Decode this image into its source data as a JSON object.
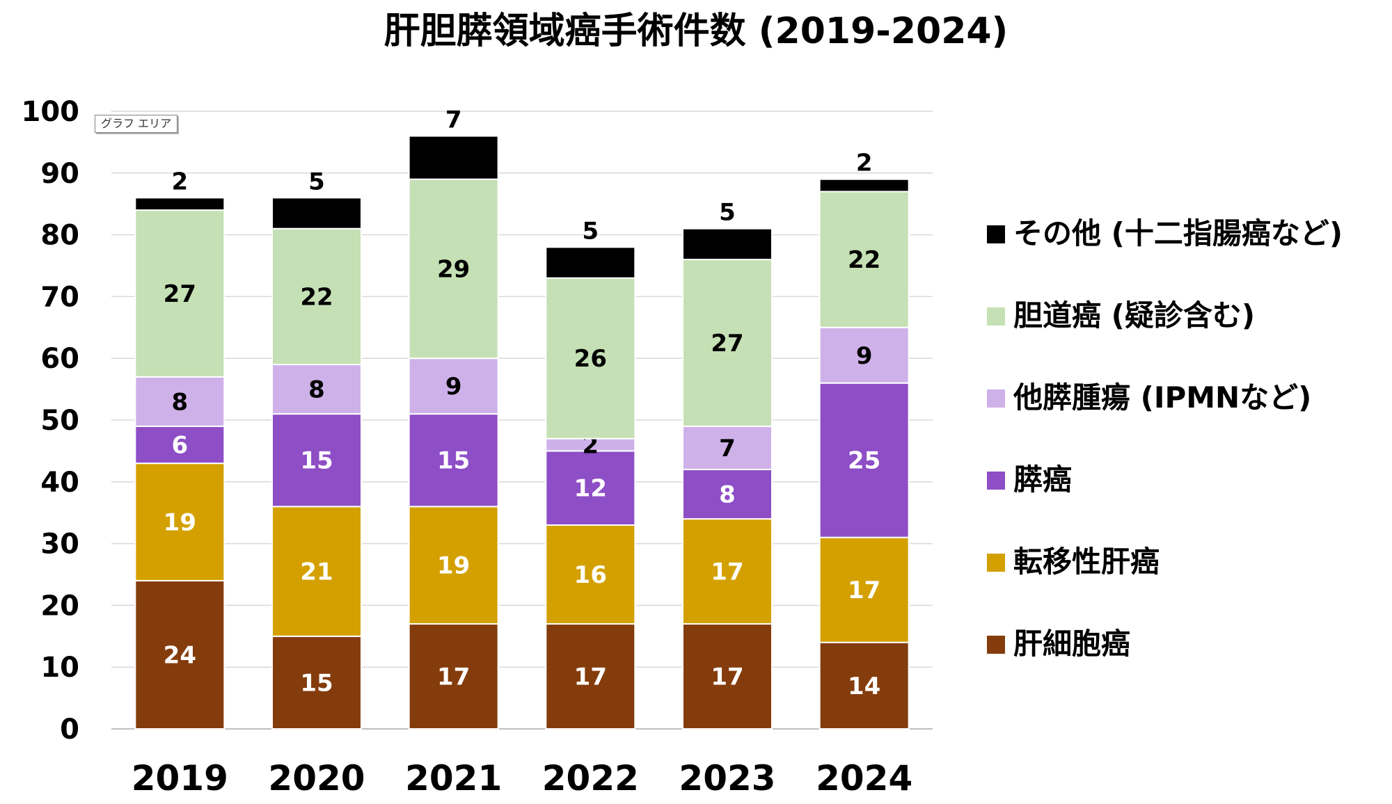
{
  "chart_data": {
    "type": "bar",
    "stacked": true,
    "title": "肝胆膵領域癌手術件数 (2019-2024)",
    "categories": [
      "2019",
      "2020",
      "2021",
      "2022",
      "2023",
      "2024"
    ],
    "ylim": [
      0,
      100
    ],
    "yticks": [
      0,
      10,
      20,
      30,
      40,
      50,
      60,
      70,
      80,
      90,
      100
    ],
    "grid": true,
    "legend_position": "right",
    "series": [
      {
        "name": "肝細胞癌",
        "color": "#843c0c",
        "label_color": "#ffffff",
        "values": [
          24,
          15,
          17,
          17,
          17,
          14
        ]
      },
      {
        "name": "転移性肝癌",
        "color": "#d4a000",
        "label_color": "#ffffff",
        "values": [
          19,
          21,
          19,
          16,
          17,
          17
        ]
      },
      {
        "name": "膵癌",
        "color": "#8e4ec6",
        "label_color": "#ffffff",
        "values": [
          6,
          15,
          15,
          12,
          8,
          25
        ]
      },
      {
        "name": "他膵腫瘍 (IPMNなど)",
        "color": "#cfb1e9",
        "label_color": "#000000",
        "values": [
          8,
          8,
          9,
          2,
          7,
          9
        ]
      },
      {
        "name": "胆道癌 (疑診含む)",
        "color": "#c5e0b4",
        "label_color": "#000000",
        "values": [
          27,
          22,
          29,
          26,
          27,
          22
        ]
      },
      {
        "name": "その他 (十二指腸癌など)",
        "color": "#000000",
        "label_color": "#000000",
        "values": [
          2,
          5,
          7,
          5,
          5,
          2
        ]
      }
    ]
  },
  "ui": {
    "chart_area_tag": "グラフ エリア"
  }
}
